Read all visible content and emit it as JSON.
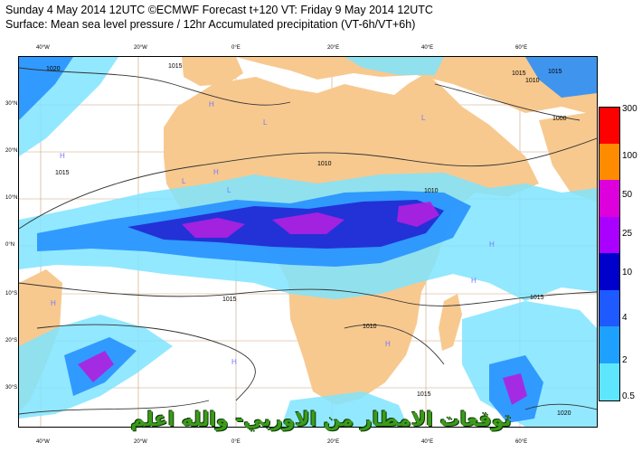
{
  "header": {
    "line1": "Sunday 4 May 2014 12UTC ©ECMWF Forecast t+120 VT: Friday 9 May 2014 12UTC",
    "line2": "Surface: Mean sea level pressure / 12hr Accumulated precipitation (VT-6h/VT+6h)"
  },
  "longitude_ticks": [
    "40°W",
    "20°W",
    "0°E",
    "20°E",
    "40°E",
    "60°E"
  ],
  "latitude_ticks": [
    "30°N",
    "20°N",
    "10°N",
    "0°N",
    "10°S",
    "20°S",
    "30°S"
  ],
  "isobar_labels": [
    "1020",
    "1015",
    "1010",
    "1015",
    "1015",
    "1010",
    "1015",
    "1010",
    "1015",
    "1010",
    "1015",
    "1000",
    "1015",
    "1020"
  ],
  "pressure_centers": [
    "H",
    "H",
    "L",
    "L",
    "H",
    "L",
    "H",
    "L",
    "H",
    "H",
    "H",
    "H"
  ],
  "colorbar": {
    "levels": [
      "300",
      "100",
      "50",
      "25",
      "10",
      "4",
      "2",
      "0.5"
    ],
    "colors": [
      "#ff0000",
      "#ff8c00",
      "#dd00dd",
      "#aa00ff",
      "#0000cc",
      "#1e5aff",
      "#1ea0ff",
      "#5fe6ff"
    ],
    "unit_note": ""
  },
  "watermark": "توقعات الامطار من الاوربي- والله اعلم",
  "map_colors": {
    "land": "#f7c98f",
    "sea": "#ffffff",
    "precip_light": "#7fe4ff",
    "precip_mid": "#1e8cff",
    "precip_heavy": "#2020d0",
    "precip_extreme": "#b020e0"
  }
}
